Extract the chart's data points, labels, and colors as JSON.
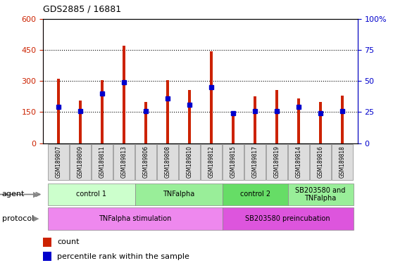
{
  "title": "GDS2885 / 16881",
  "samples": [
    "GSM189807",
    "GSM189809",
    "GSM189811",
    "GSM189813",
    "GSM189806",
    "GSM189808",
    "GSM189810",
    "GSM189812",
    "GSM189815",
    "GSM189817",
    "GSM189819",
    "GSM189814",
    "GSM189816",
    "GSM189818"
  ],
  "count_values": [
    310,
    205,
    305,
    470,
    200,
    305,
    255,
    445,
    145,
    225,
    255,
    215,
    200,
    230
  ],
  "percentile_values": [
    29,
    26,
    40,
    49,
    26,
    36,
    31,
    45,
    24,
    26,
    26,
    29,
    24,
    26
  ],
  "bar_color": "#cc2200",
  "percentile_color": "#0000cc",
  "ylim_left": [
    0,
    600
  ],
  "ylim_right": [
    0,
    100
  ],
  "yticks_left": [
    0,
    150,
    300,
    450,
    600
  ],
  "yticks_right": [
    0,
    25,
    50,
    75,
    100
  ],
  "agent_groups": [
    {
      "label": "control 1",
      "start": 0,
      "end": 4,
      "color": "#ccffcc"
    },
    {
      "label": "TNFalpha",
      "start": 4,
      "end": 8,
      "color": "#99ee99"
    },
    {
      "label": "control 2",
      "start": 8,
      "end": 11,
      "color": "#66dd66"
    },
    {
      "label": "SB203580 and\nTNFalpha",
      "start": 11,
      "end": 14,
      "color": "#99ee99"
    }
  ],
  "protocol_groups": [
    {
      "label": "TNFalpha stimulation",
      "start": 0,
      "end": 8,
      "color": "#ee88ee"
    },
    {
      "label": "SB203580 preincubation",
      "start": 8,
      "end": 14,
      "color": "#dd55dd"
    }
  ],
  "legend_count_label": "count",
  "legend_percentile_label": "percentile rank within the sample",
  "agent_label": "agent",
  "protocol_label": "protocol",
  "background_color": "#ffffff",
  "tick_label_color_left": "#cc2200",
  "tick_label_color_right": "#0000cc",
  "bar_width": 0.15,
  "label_cell_color": "#dddddd",
  "label_cell_edge": "#888888"
}
